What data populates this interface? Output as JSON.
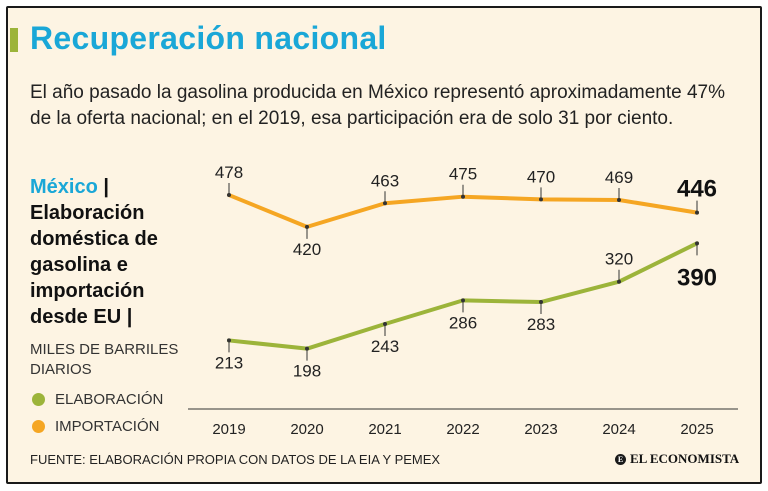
{
  "header": {
    "title": "Recuperación nacional",
    "subtitle": "El año pasado la gasolina producida en México representó aproximadamente 47% de la oferta nacional; en el 2019, esa participación era de solo 31 por ciento."
  },
  "side": {
    "country": "México",
    "separator": " |",
    "description": "Elaboración doméstica de gasolina e importación desde EU |",
    "units": "MILES DE BARRILES DIARIOS"
  },
  "legend": {
    "items": [
      {
        "label": "ELABORACIÓN",
        "color": "#9cb43a"
      },
      {
        "label": "IMPORTACIÓN",
        "color": "#f5a623"
      }
    ]
  },
  "footer": {
    "source": "FUENTE: ELABORACIÓN PROPIA CON DATOS DE LA EIA Y PEMEX",
    "logo": "EL ECONOMISTA",
    "logo_mark": "E"
  },
  "chart_data": {
    "type": "line",
    "x": [
      "2019",
      "2020",
      "2021",
      "2022",
      "2023",
      "2024",
      "2025"
    ],
    "series": [
      {
        "name": "IMPORTACIÓN",
        "color": "#f5a623",
        "values": [
          478,
          420,
          463,
          475,
          470,
          469,
          446
        ]
      },
      {
        "name": "ELABORACIÓN",
        "color": "#9cb43a",
        "values": [
          213,
          198,
          243,
          286,
          283,
          320,
          390
        ]
      }
    ],
    "ylim": [
      150,
      520
    ],
    "grid": false
  }
}
